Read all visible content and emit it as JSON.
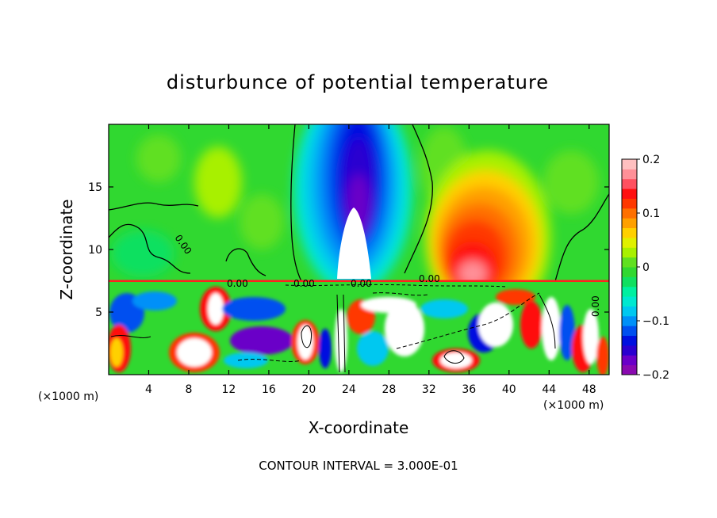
{
  "chart_data": {
    "type": "heatmap",
    "title": "disturbunce of potential temperature",
    "xlabel": "X-coordinate",
    "ylabel": "Z-coordinate",
    "x_unit_left": "(×1000 m)",
    "x_unit_right": "(×1000 m)",
    "xlim": [
      0,
      50
    ],
    "ylim": [
      0,
      20
    ],
    "x_ticks": [
      4,
      8,
      12,
      16,
      20,
      24,
      28,
      32,
      36,
      40,
      44,
      48
    ],
    "y_ticks": [
      5,
      10,
      15
    ],
    "colorbar": {
      "range": [
        -0.2,
        0.2
      ],
      "tick_values": [
        0.2,
        0.1,
        0,
        -0.1,
        -0.2
      ],
      "tick_labels": [
        "0.2",
        "0.1",
        "0",
        "−0.1",
        "−0.2"
      ],
      "colors": [
        "#8a0ab0",
        "#6a00c8",
        "#2a00d0",
        "#0010e0",
        "#0050f0",
        "#0090f8",
        "#00c8f0",
        "#00e8d0",
        "#00f0a0",
        "#10e060",
        "#30d830",
        "#60e020",
        "#a8f000",
        "#e0f000",
        "#ffd000",
        "#ffa000",
        "#ff7000",
        "#ff3800",
        "#ff1010",
        "#ff5060",
        "#ff9098",
        "#ffc0c0"
      ]
    },
    "contour_labels": [
      "0.00",
      "0.00",
      "0.00",
      "0.00",
      "0.00",
      "0.00"
    ],
    "annotation": "CONTOUR INTERVAL = 3.000E-01"
  }
}
